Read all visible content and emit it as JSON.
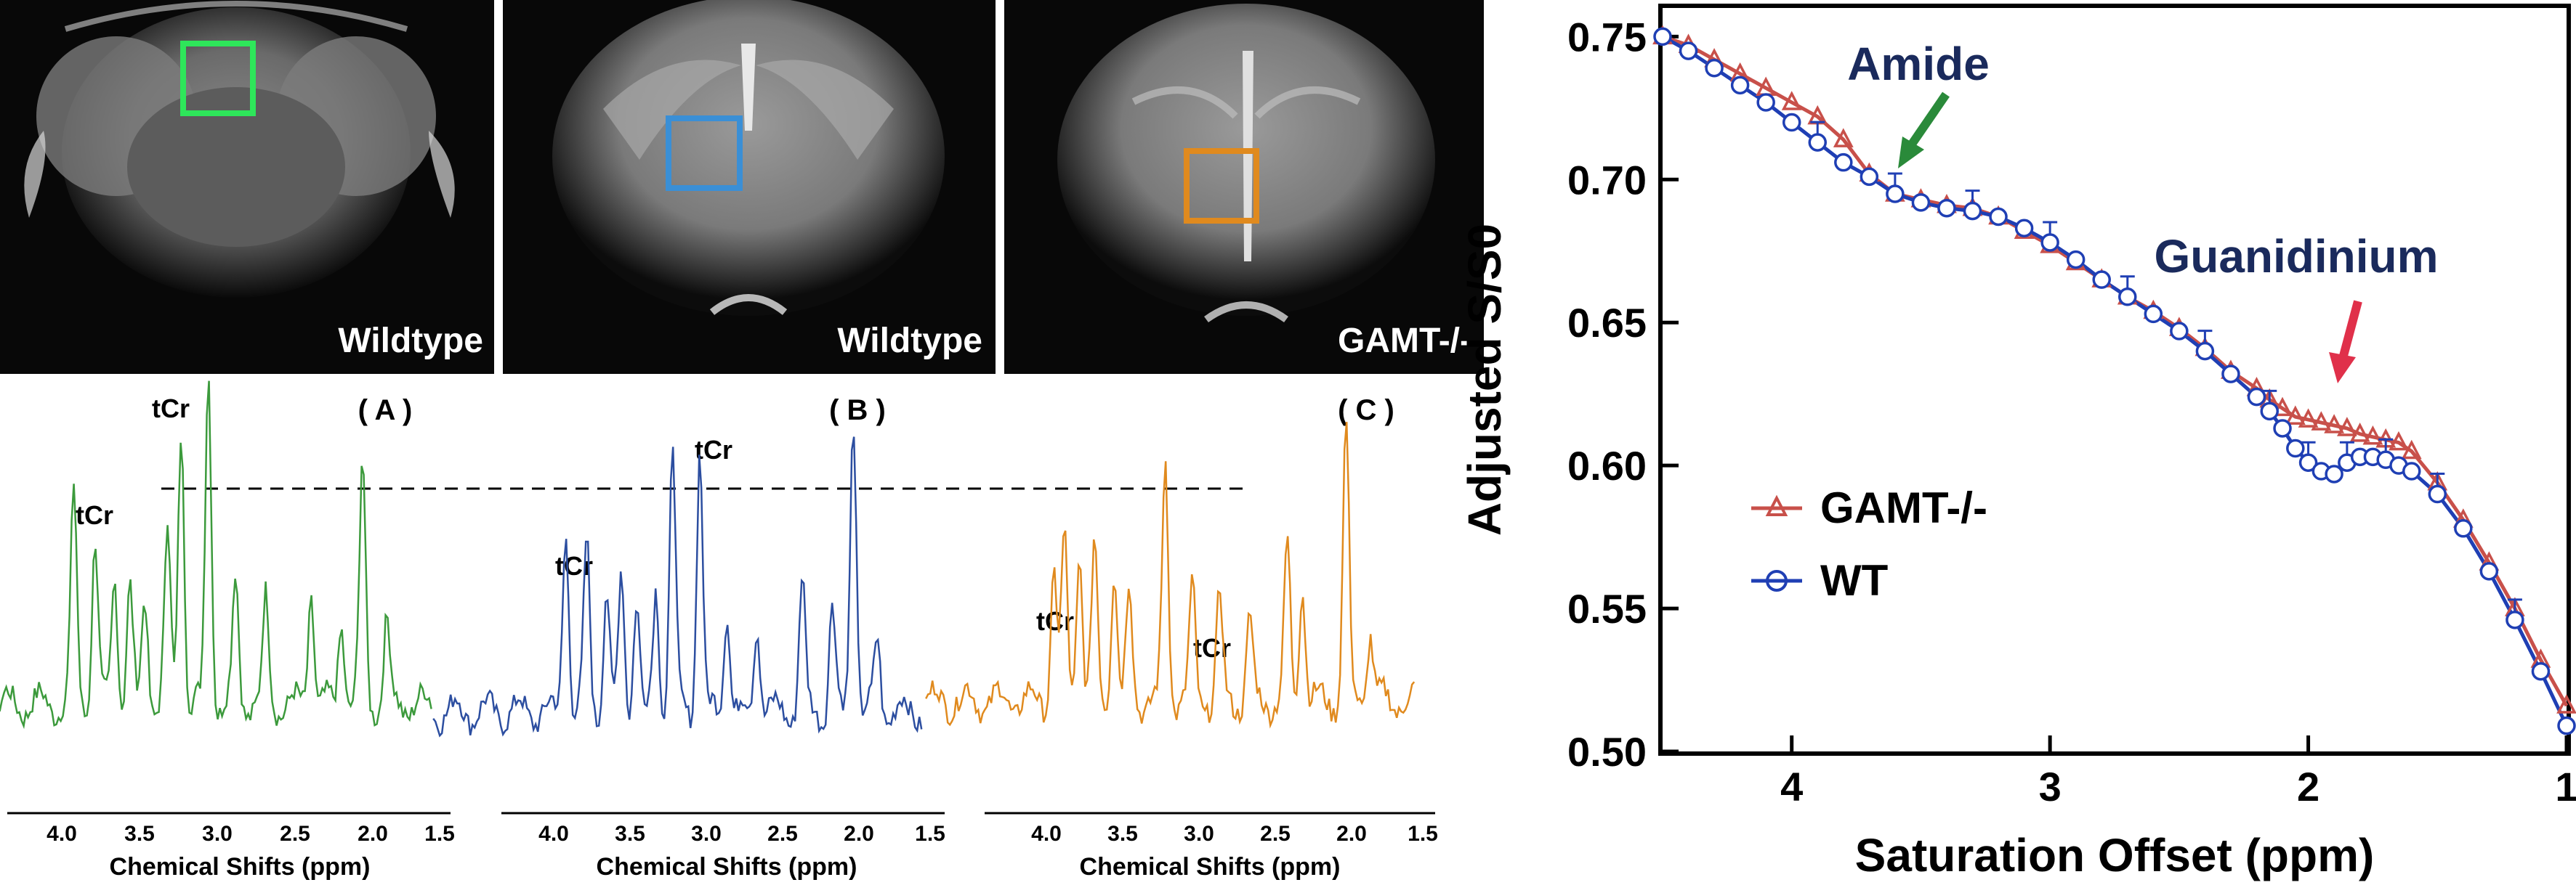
{
  "mri_panels": [
    {
      "label": "Wildtype",
      "roi_color": "#2ee65a"
    },
    {
      "label": "Wildtype",
      "roi_color": "#3a8fd6"
    },
    {
      "label": "GAMT-/-",
      "roi_color": "#e08a1e"
    }
  ],
  "spectra": [
    {
      "panel_label": "( A )",
      "color": "#3c9a3c",
      "tcr_labels": [
        "tCr",
        "tCr"
      ],
      "x_ticks": [
        "4.0",
        "3.5",
        "3.0",
        "2.5",
        "2.0",
        "1.5"
      ],
      "x_label": "Chemical Shifts (ppm)"
    },
    {
      "panel_label": "( B )",
      "color": "#2c4ea0",
      "tcr_labels": [
        "tCr",
        "tCr"
      ],
      "x_ticks": [
        "4.0",
        "3.5",
        "3.0",
        "2.5",
        "2.0",
        "1.5"
      ],
      "x_label": "Chemical Shifts (ppm)"
    },
    {
      "panel_label": "( C )",
      "color": "#e08a1e",
      "tcr_labels": [
        "tCr",
        "tCr"
      ],
      "x_ticks": [
        "4.0",
        "3.5",
        "3.0",
        "2.5",
        "2.0",
        "1.5"
      ],
      "x_label": "Chemical Shifts (ppm)"
    }
  ],
  "chart_data": {
    "type": "line",
    "xlabel": "Saturation Offset (ppm)",
    "ylabel": "Adjusted S/S0",
    "x_reversed": true,
    "xlim": [
      4.5,
      1.0
    ],
    "ylim": [
      0.5,
      0.76
    ],
    "x_ticks": [
      "4",
      "3",
      "2",
      "1"
    ],
    "y_ticks": [
      "0.75",
      "0.70",
      "0.65",
      "0.60",
      "0.55",
      "0.50"
    ],
    "legend_position": "left-center",
    "annotations": [
      {
        "text": "Amide",
        "color": "#1a2a5c",
        "arrow_color": "#2a8a3a",
        "x": 3.55
      },
      {
        "text": "Guanidinium",
        "color": "#1a2a5c",
        "arrow_color": "#e0304a",
        "x": 1.98
      }
    ],
    "series": [
      {
        "name": "GAMT-/-",
        "color": "#c8504a",
        "marker": "triangle",
        "x": [
          4.5,
          4.4,
          4.3,
          4.2,
          4.1,
          4.0,
          3.9,
          3.8,
          3.7,
          3.6,
          3.5,
          3.4,
          3.3,
          3.2,
          3.1,
          3.0,
          2.9,
          2.8,
          2.7,
          2.6,
          2.5,
          2.4,
          2.3,
          2.2,
          2.15,
          2.1,
          2.05,
          2.0,
          1.95,
          1.9,
          1.85,
          1.8,
          1.75,
          1.7,
          1.65,
          1.6,
          1.5,
          1.4,
          1.3,
          1.2,
          1.1,
          1.0
        ],
        "values": [
          0.75,
          0.747,
          0.742,
          0.737,
          0.732,
          0.727,
          0.722,
          0.714,
          0.702,
          0.695,
          0.693,
          0.691,
          0.69,
          0.687,
          0.682,
          0.677,
          0.671,
          0.665,
          0.659,
          0.654,
          0.648,
          0.641,
          0.633,
          0.627,
          0.623,
          0.62,
          0.617,
          0.616,
          0.615,
          0.614,
          0.613,
          0.611,
          0.61,
          0.609,
          0.608,
          0.605,
          0.594,
          0.581,
          0.566,
          0.55,
          0.532,
          0.516
        ]
      },
      {
        "name": "WT",
        "color": "#1f3fb4",
        "marker": "circle",
        "x": [
          4.5,
          4.4,
          4.3,
          4.2,
          4.1,
          4.0,
          3.9,
          3.8,
          3.7,
          3.6,
          3.5,
          3.4,
          3.3,
          3.2,
          3.1,
          3.0,
          2.9,
          2.8,
          2.7,
          2.6,
          2.5,
          2.4,
          2.3,
          2.2,
          2.15,
          2.1,
          2.05,
          2.0,
          1.95,
          1.9,
          1.85,
          1.8,
          1.75,
          1.7,
          1.65,
          1.6,
          1.5,
          1.4,
          1.3,
          1.2,
          1.1,
          1.0
        ],
        "values": [
          0.75,
          0.745,
          0.739,
          0.733,
          0.727,
          0.72,
          0.713,
          0.706,
          0.701,
          0.695,
          0.692,
          0.69,
          0.689,
          0.687,
          0.683,
          0.678,
          0.672,
          0.665,
          0.659,
          0.653,
          0.647,
          0.64,
          0.632,
          0.624,
          0.619,
          0.613,
          0.606,
          0.601,
          0.598,
          0.597,
          0.601,
          0.603,
          0.603,
          0.602,
          0.6,
          0.598,
          0.59,
          0.578,
          0.563,
          0.546,
          0.528,
          0.509
        ]
      }
    ]
  }
}
